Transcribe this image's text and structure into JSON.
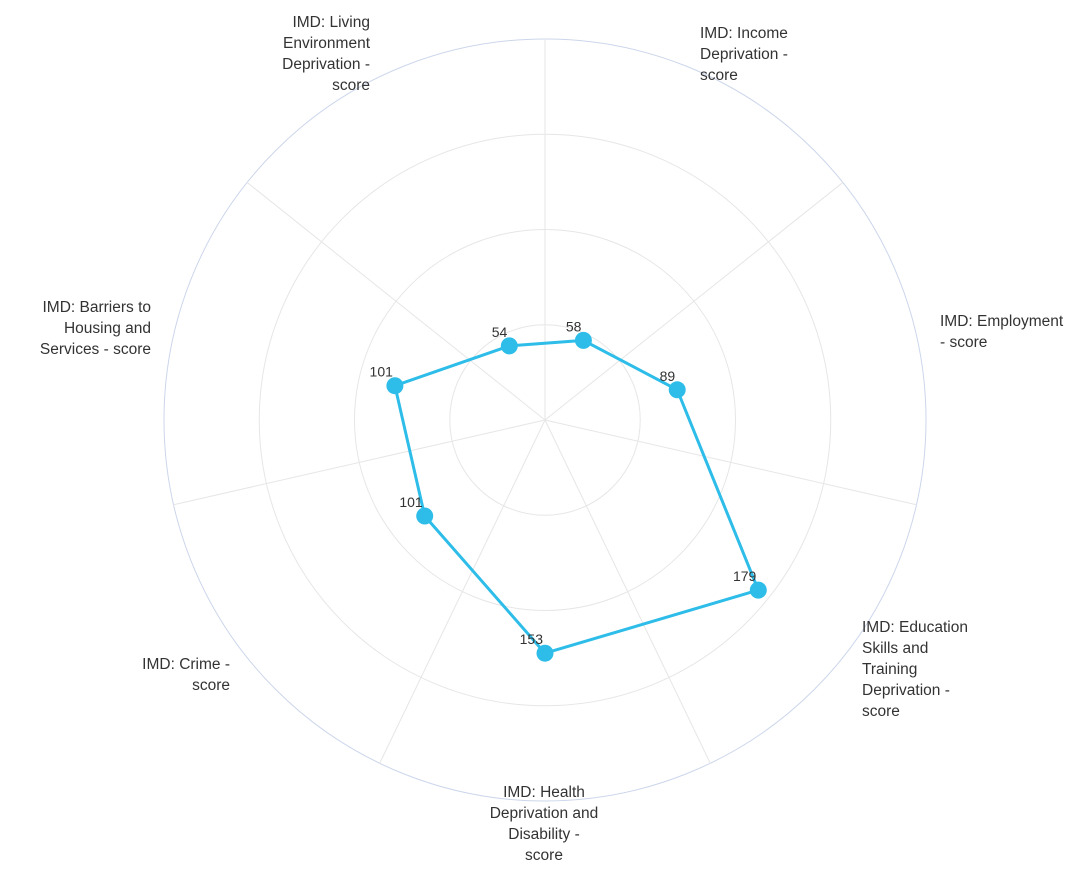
{
  "chart_data": {
    "type": "radar",
    "title": "",
    "axes": [
      "IMD: Income\nDeprivation -\nscore",
      "IMD: Employment\n- score",
      "IMD: Education\nSkills and\nTraining\nDeprivation -\nscore",
      "IMD: Health\nDeprivation and\nDisability -\nscore",
      "IMD: Crime -\nscore",
      "IMD: Barriers to\nHousing and\nServices - score",
      "IMD: Living\nEnvironment\nDeprivation -\nscore"
    ],
    "series": [
      {
        "values": [
          58,
          89,
          179,
          153,
          101,
          101,
          54
        ],
        "color": "#2dbde8"
      }
    ],
    "labels": [
      "58",
      "89",
      "179",
      "153",
      "101",
      "101",
      "54"
    ],
    "rmax": 250,
    "rings": 4,
    "grid": true,
    "gridColor": "#e6e6e6",
    "outerRingColor": "#ccd6eb",
    "labelColor": "#333333"
  }
}
